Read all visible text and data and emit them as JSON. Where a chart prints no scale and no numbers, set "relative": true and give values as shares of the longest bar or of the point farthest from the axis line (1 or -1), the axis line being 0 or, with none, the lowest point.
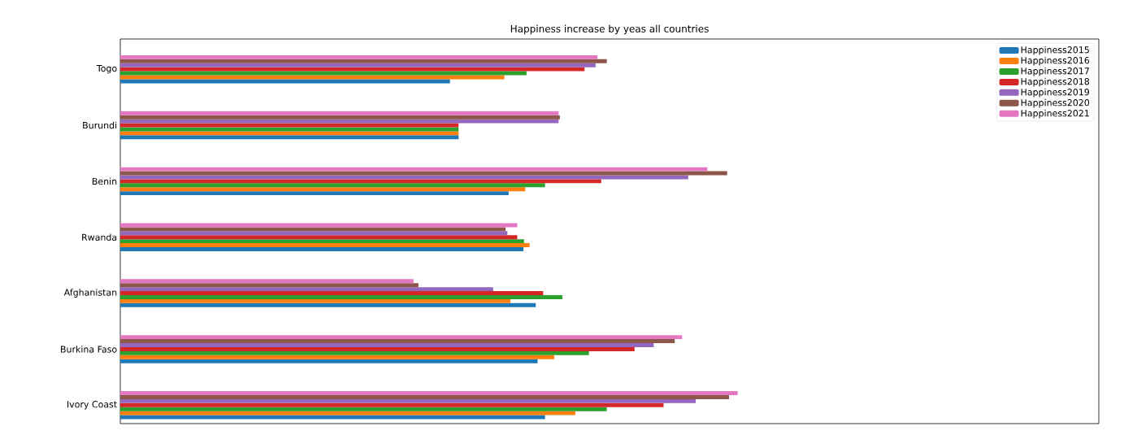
{
  "chart_data": {
    "type": "bar",
    "orientation": "horizontal",
    "relative": true,
    "title": "Happiness increase by yeas all countries",
    "categories": [
      "Togo",
      "Burundi",
      "Benin",
      "Rwanda",
      "Afghanistan",
      "Burkina Faso",
      "Ivory Coast"
    ],
    "legend": "top right",
    "series": [
      {
        "name": "Happiness2015",
        "color": "#1f77b4",
        "values": [
          0.534,
          0.548,
          0.629,
          0.653,
          0.673,
          0.676,
          0.688
        ]
      },
      {
        "name": "Happiness2016",
        "color": "#ff7f0e",
        "values": [
          0.622,
          0.548,
          0.656,
          0.663,
          0.632,
          0.703,
          0.737
        ]
      },
      {
        "name": "Happiness2017",
        "color": "#2ca02c",
        "values": [
          0.658,
          0.548,
          0.688,
          0.654,
          0.716,
          0.759,
          0.788
        ]
      },
      {
        "name": "Happiness2018",
        "color": "#d62728",
        "values": [
          0.752,
          0.548,
          0.779,
          0.643,
          0.685,
          0.833,
          0.88
        ]
      },
      {
        "name": "Happiness2019",
        "color": "#9467bd",
        "values": [
          0.77,
          0.71,
          0.92,
          0.627,
          0.604,
          0.864,
          0.932
        ]
      },
      {
        "name": "Happiness2020",
        "color": "#8c564b",
        "values": [
          0.788,
          0.712,
          0.983,
          0.624,
          0.483,
          0.898,
          0.986
        ]
      },
      {
        "name": "Happiness2021",
        "color": "#e377c2",
        "values": [
          0.773,
          0.71,
          0.951,
          0.643,
          0.475,
          0.91,
          1
        ]
      }
    ]
  }
}
